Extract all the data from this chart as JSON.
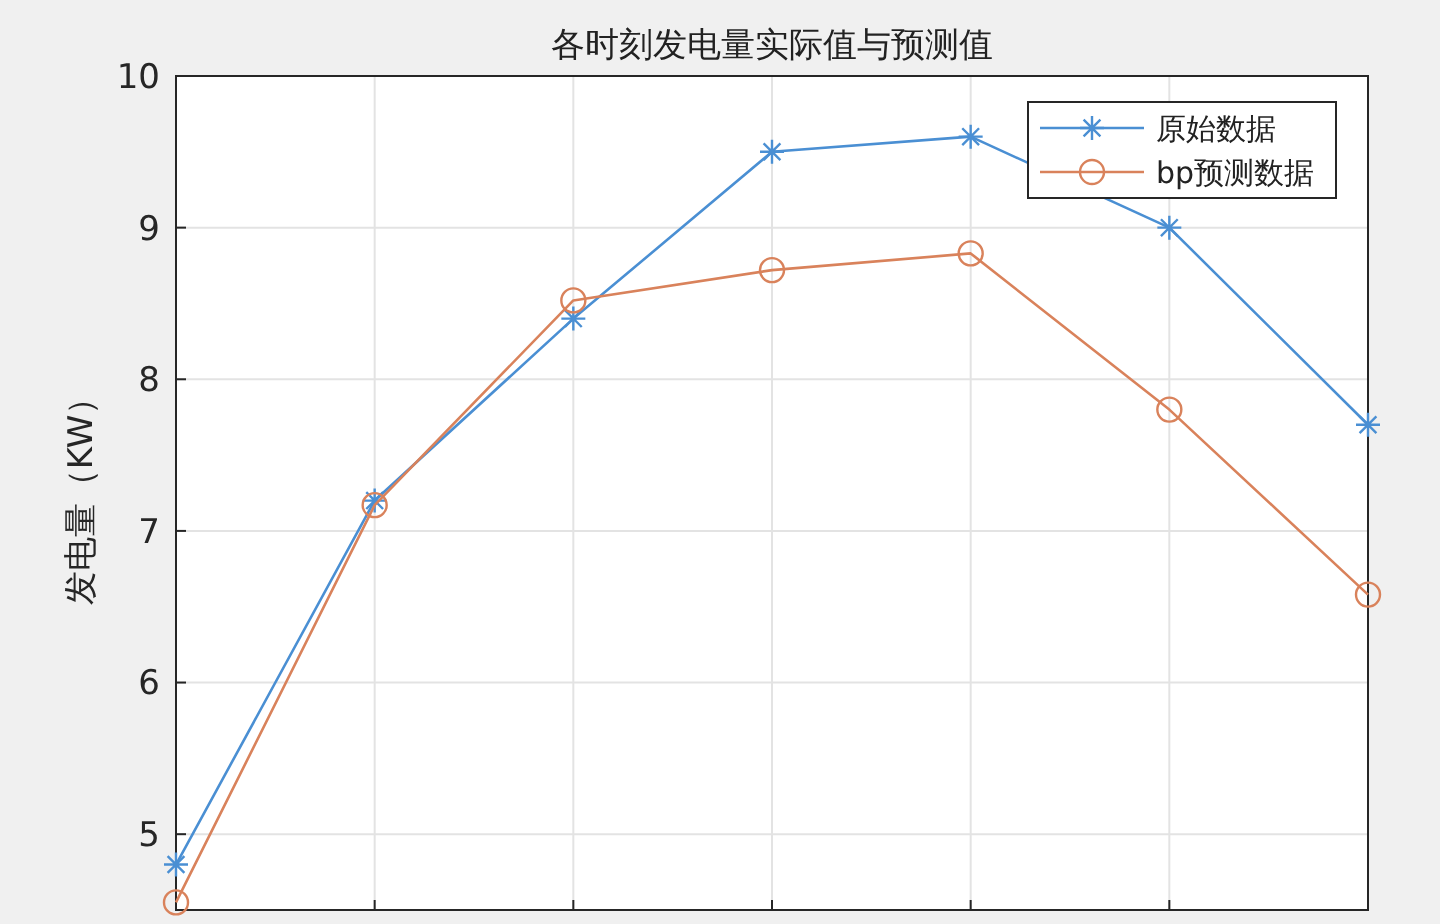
{
  "chart_data": {
    "type": "line",
    "title": "各时刻发电量实际值与预测值",
    "ylabel": "发电量（KW）",
    "categories": [
      null,
      null,
      null,
      null,
      null,
      null,
      null
    ],
    "ylim": [
      4.5,
      10
    ],
    "yticks": [
      5,
      6,
      7,
      8,
      9,
      10
    ],
    "tick_labels": "y",
    "grid": true,
    "legend": "top right",
    "series": [
      {
        "name": "原始数据",
        "color": "#4a8fd3",
        "marker": "cross",
        "values": [
          4.8,
          7.2,
          8.4,
          9.5,
          9.6,
          9.0,
          7.7
        ]
      },
      {
        "name": "bp预测数据",
        "color": "#d9825b",
        "marker": "circle",
        "values": [
          4.55,
          7.17,
          8.52,
          8.72,
          8.83,
          7.8,
          6.58
        ]
      }
    ]
  }
}
